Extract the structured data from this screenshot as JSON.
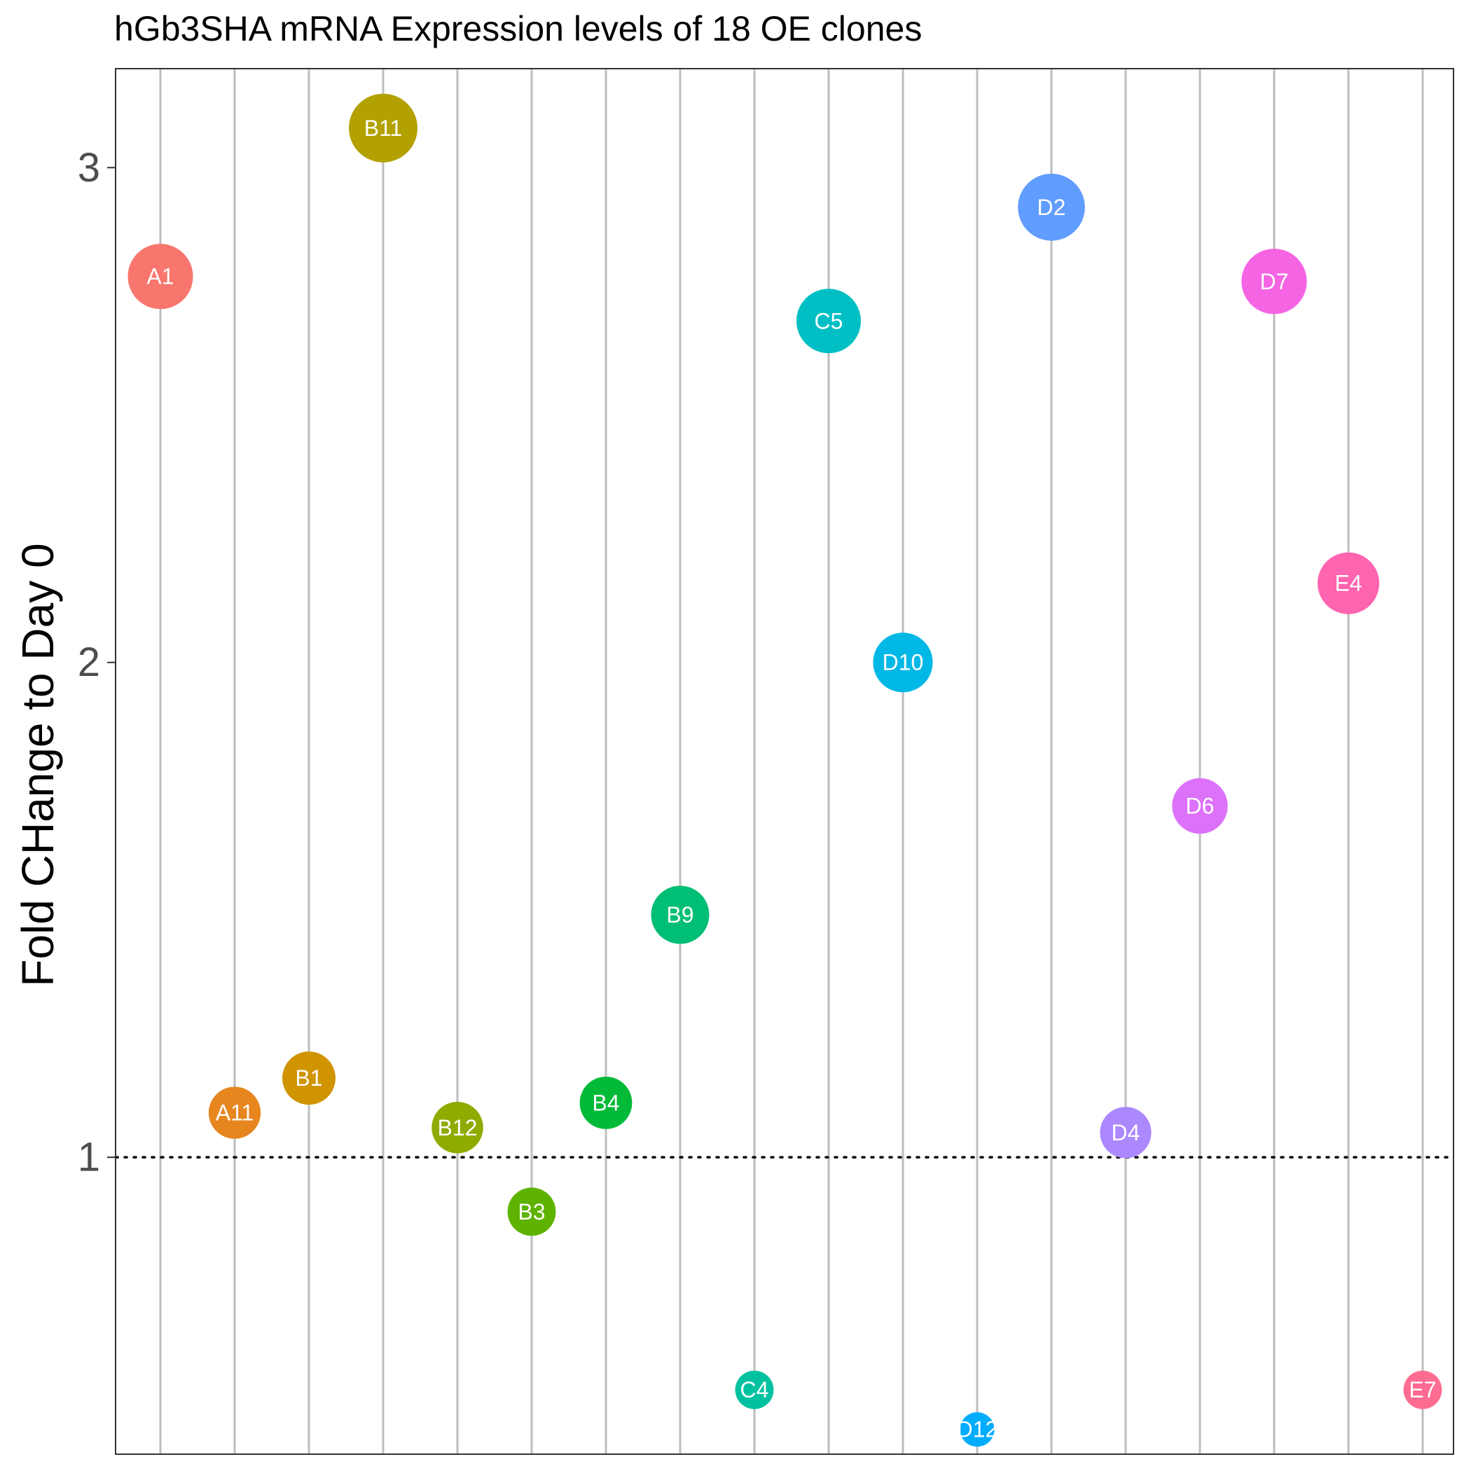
{
  "chart_data": {
    "type": "scatter",
    "title": "hGb3SHA mRNA Expression levels of 18 OE clones",
    "xlabel": "",
    "ylabel": "Fold CHange to Day 0",
    "ylim": [
      0.4,
      3.2
    ],
    "yticks": [
      1,
      2,
      3
    ],
    "grid": "vertical",
    "reference_line": 1,
    "legend": "none",
    "categories": [
      "A1",
      "A11",
      "B1",
      "B11",
      "B12",
      "B3",
      "B4",
      "B9",
      "C4",
      "C5",
      "D10",
      "D12",
      "D2",
      "D4",
      "D6",
      "D7",
      "E4",
      "E7"
    ],
    "values": [
      2.78,
      1.09,
      1.16,
      3.08,
      1.06,
      0.89,
      1.11,
      1.49,
      0.53,
      2.69,
      2.0,
      0.45,
      2.92,
      1.05,
      1.71,
      2.77,
      2.16,
      0.53
    ],
    "sizes": [
      1.66,
      0.69,
      0.76,
      1.98,
      0.66,
      0.49,
      0.71,
      1.09,
      0.13,
      1.59,
      1.2,
      0.05,
      1.82,
      0.65,
      0.91,
      1.67,
      1.36,
      0.13
    ],
    "colors": [
      "#F8766D",
      "#E7851E",
      "#D09400",
      "#B2A100",
      "#8EAB00",
      "#5EB300",
      "#00BA38",
      "#00BF74",
      "#00C19F",
      "#00BFC4",
      "#00B8E5",
      "#00ACFC",
      "#619CFF",
      "#AC88FF",
      "#DC71FA",
      "#F564E3",
      "#FF64B0",
      "#FF6C91"
    ]
  }
}
